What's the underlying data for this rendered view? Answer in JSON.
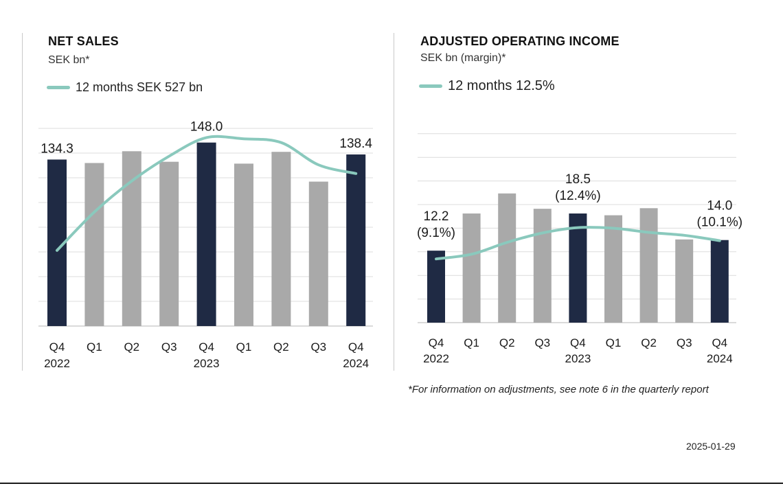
{
  "colors": {
    "dark_bar": "#1f2a44",
    "light_bar": "#a9a9a9",
    "line": "#8ac9bd",
    "grid": "#dcdcdc"
  },
  "chart_data": [
    {
      "type": "bar",
      "title": "NET SALES",
      "subtitle": "SEK bn*",
      "legend": "12 months SEK 527 bn",
      "legend_placement": "top-left",
      "grid": true,
      "ylim": [
        0,
        160
      ],
      "categories": [
        "Q4\n2022",
        "Q1",
        "Q2",
        "Q3",
        "Q4\n2023",
        "Q1",
        "Q2",
        "Q3",
        "Q4\n2024"
      ],
      "values": [
        134.3,
        131.5,
        141.0,
        132.5,
        148.0,
        131.0,
        140.5,
        116.5,
        138.4
      ],
      "highlight": [
        true,
        false,
        false,
        false,
        true,
        false,
        false,
        false,
        true
      ],
      "series": [
        {
          "name": "12 months SEK 527 bn",
          "type": "line",
          "values": [
            61,
            92,
            117,
            137,
            152,
            151,
            148,
            130,
            123
          ]
        }
      ],
      "data_labels": [
        {
          "index": 0,
          "text": "134.3"
        },
        {
          "index": 4,
          "text": "148.0"
        },
        {
          "index": 8,
          "text": "138.4"
        }
      ]
    },
    {
      "type": "bar",
      "title": "ADJUSTED OPERATING INCOME",
      "subtitle": "SEK bn (margin)*",
      "legend": "12 months 12.5%",
      "legend_placement": "top-left",
      "grid": true,
      "ylim": [
        0,
        32
      ],
      "categories": [
        "Q4\n2022",
        "Q1",
        "Q2",
        "Q3",
        "Q4\n2023",
        "Q1",
        "Q2",
        "Q3",
        "Q4\n2024"
      ],
      "values": [
        12.2,
        18.5,
        21.9,
        19.3,
        18.5,
        18.2,
        19.4,
        14.1,
        14.0
      ],
      "highlight": [
        true,
        false,
        false,
        false,
        true,
        false,
        false,
        false,
        true
      ],
      "series": [
        {
          "name": "12 months 12.5%",
          "type": "line",
          "values": [
            10.8,
            11.6,
            13.6,
            15.2,
            16.1,
            16.0,
            15.3,
            14.8,
            13.9
          ]
        }
      ],
      "data_labels": [
        {
          "index": 0,
          "text": "12.2",
          "sub": "(9.1%)"
        },
        {
          "index": 4,
          "text": "18.5",
          "sub": "(12.4%)"
        },
        {
          "index": 8,
          "text": "14.0",
          "sub": "(10.1%)"
        }
      ]
    }
  ],
  "footnote": "*For information on adjustments, see note 6 in the quarterly report",
  "date": "2025-01-29"
}
